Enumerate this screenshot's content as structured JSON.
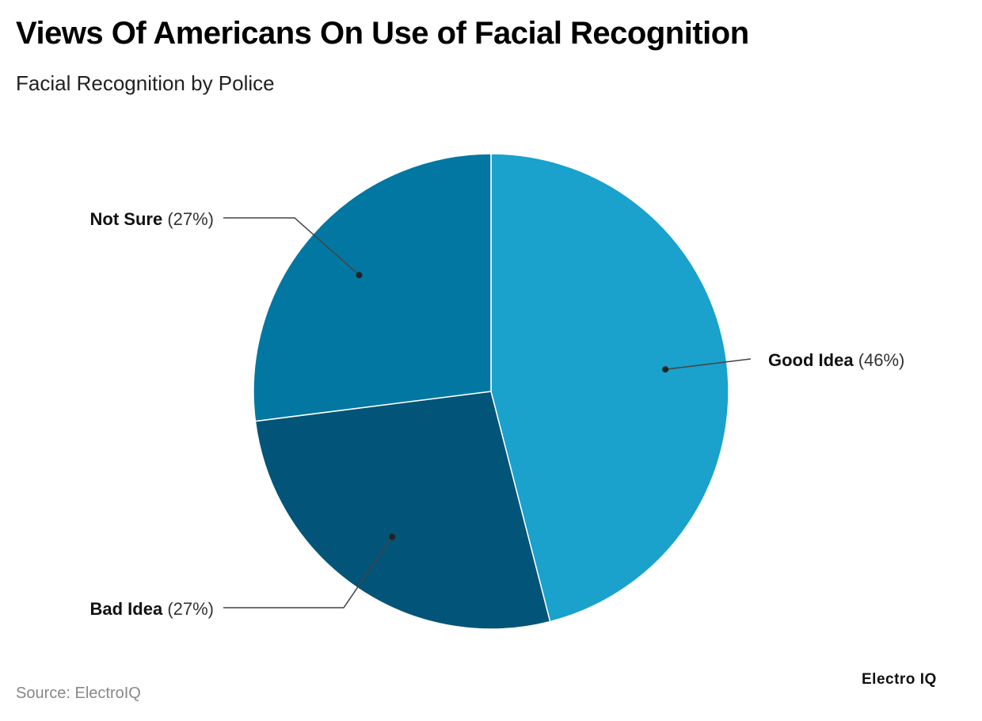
{
  "header": {
    "title": "Views Of Americans On Use of Facial Recognition",
    "subtitle": "Facial Recognition by Police"
  },
  "footer": {
    "source": "Source: ElectroIQ",
    "logo_text": "Electro IQ"
  },
  "chart_data": {
    "type": "pie",
    "title": "Views Of Americans On Use of Facial Recognition",
    "subtitle": "Facial Recognition by Police",
    "slices": [
      {
        "label": "Good Idea",
        "value": 46,
        "value_label": "(46%)",
        "color": "#1aa1cc"
      },
      {
        "label": "Bad Idea",
        "value": 27,
        "value_label": "(27%)",
        "color": "#025478"
      },
      {
        "label": "Not Sure",
        "value": 27,
        "value_label": "(27%)",
        "color": "#0277a2"
      }
    ],
    "start": "top (12 o'clock), clockwise",
    "legend": "none",
    "labels": "outside with leader lines"
  }
}
